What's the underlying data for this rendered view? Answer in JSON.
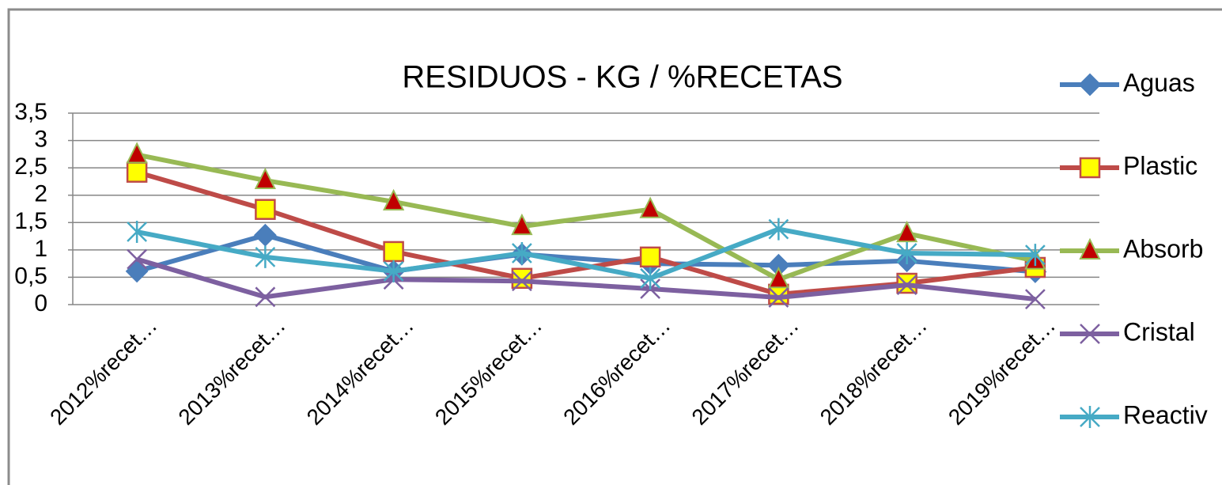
{
  "chart_data": {
    "type": "line",
    "title": "RESIDUOS - KG / %RECETAS",
    "categories": [
      "2012%recet…",
      "2013%recet…",
      "2014%recet…",
      "2015%recet…",
      "2016%recet…",
      "2017%recet…",
      "2018%recet…",
      "2019%recet…"
    ],
    "series": [
      {
        "name": "Aguas",
        "color": "#4a7ebb",
        "marker": "diamond",
        "marker_fill": "#4a7ebb",
        "values": [
          0.61,
          1.27,
          0.61,
          0.92,
          0.75,
          0.72,
          0.8,
          0.6
        ]
      },
      {
        "name": "Plastic",
        "color": "#be4b48",
        "marker": "square",
        "marker_fill": "#ffff00",
        "values": [
          2.42,
          1.74,
          0.97,
          0.48,
          0.87,
          0.19,
          0.39,
          0.68
        ]
      },
      {
        "name": "Absorb",
        "color": "#98b954",
        "marker": "triangle",
        "marker_fill": "#c00000",
        "values": [
          2.74,
          2.27,
          1.88,
          1.43,
          1.74,
          0.46,
          1.3,
          0.8
        ]
      },
      {
        "name": "Cristal",
        "color": "#7d60a0",
        "marker": "x",
        "marker_fill": "#7d60a0",
        "values": [
          0.83,
          0.14,
          0.46,
          0.43,
          0.29,
          0.13,
          0.36,
          0.1
        ]
      },
      {
        "name": "Reactiv",
        "color": "#46aac5",
        "marker": "star",
        "marker_fill": "#46aac5",
        "values": [
          1.33,
          0.87,
          0.61,
          0.94,
          0.48,
          1.38,
          0.94,
          0.91
        ]
      }
    ],
    "ylim": [
      0,
      3.5
    ],
    "yticks": [
      0,
      {
        "value": 0.5,
        "label": "0,5"
      },
      1,
      {
        "value": 1.5,
        "label": "1,5"
      },
      2,
      {
        "value": 2.5,
        "label": "2,5"
      },
      3,
      {
        "value": 3.5,
        "label": "3,5"
      }
    ],
    "grid": true,
    "legend": "right"
  }
}
